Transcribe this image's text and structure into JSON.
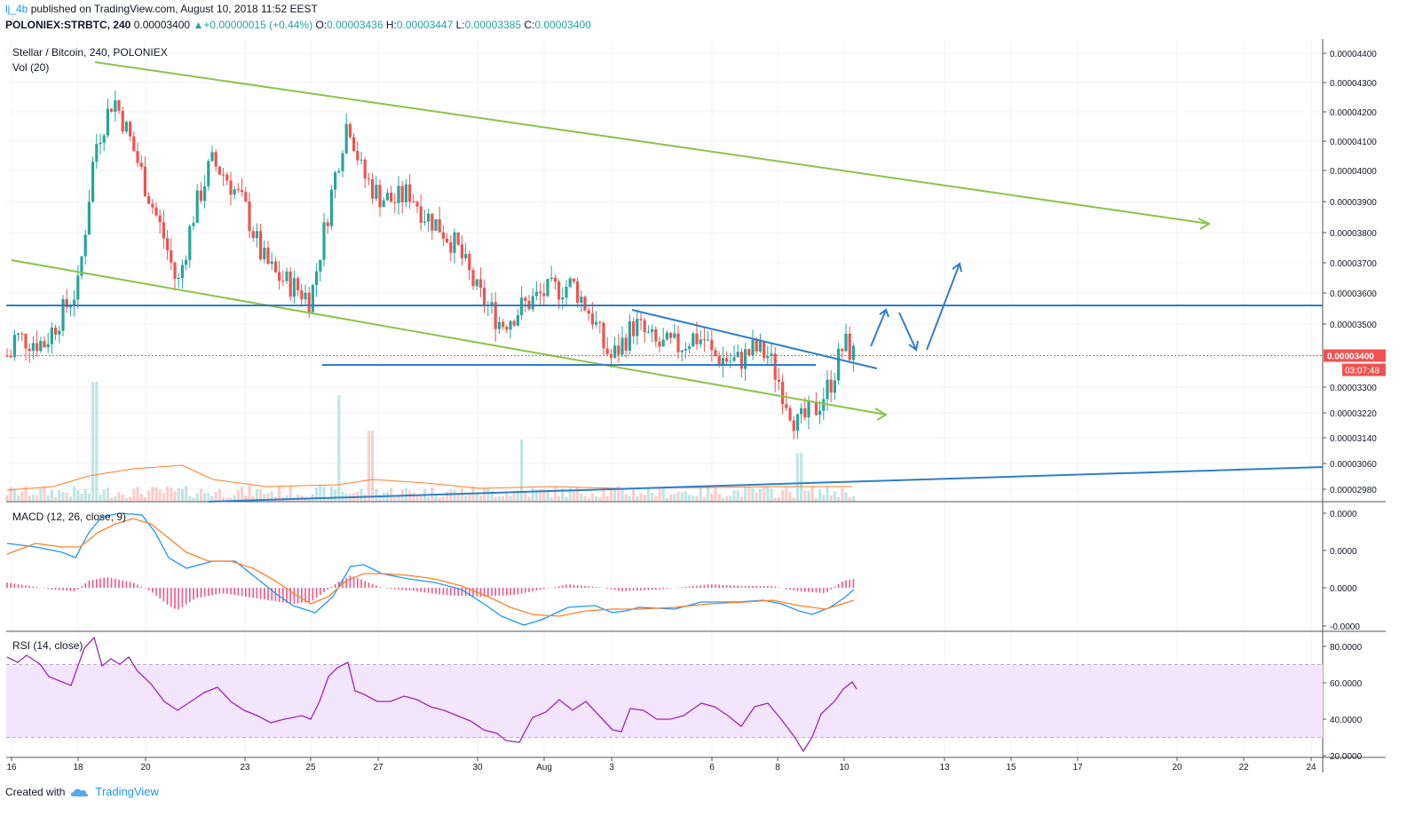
{
  "header": {
    "author": "lj_4b",
    "published_text": "published on TradingView.com, August 10, 2018 11:52 EEST",
    "symbol": "POLONIEX:STRBTC, 240",
    "last": "0.00003400",
    "change": "▲+0.00000015 (+0.44%)",
    "o_label": "O:",
    "o_value": "0.00003436",
    "h_label": "H:",
    "h_value": "0.00003447",
    "l_label": "L:",
    "l_value": "0.00003385",
    "c_label": "C:",
    "c_value": "0.00003400"
  },
  "panes": {
    "main_title": "Stellar / Bitcoin, 240, POLONIEX",
    "vol_title": "Vol (20)",
    "macd_title": "MACD (12, 26, close, 9)",
    "rsi_title": "RSI (14, close)"
  },
  "price_badge": {
    "price": "0.00003400",
    "countdown": "03:07:48"
  },
  "footer": {
    "created_with": "Created with",
    "brand": "TradingView"
  },
  "colors": {
    "up": "#26a69a",
    "down": "#ef5350",
    "channel": "#8bc34a",
    "trendline": "#2f7fc8",
    "macd": "#2196f3",
    "signal": "#ff7f27",
    "hist": "#e91e63",
    "rsi": "#9c27b0",
    "rsi_band": "#f3e5fc"
  },
  "chart_data": [
    {
      "type": "candlestick",
      "title": "Stellar / Bitcoin, 240, POLONIEX",
      "x_ticks": [
        "16",
        "18",
        "20",
        "23",
        "25",
        "27",
        "30",
        "Aug",
        "3",
        "6",
        "8",
        "10",
        "13",
        "15",
        "17",
        "20",
        "22",
        "24"
      ],
      "y_ticks": [
        "0.00004400",
        "0.00004300",
        "0.00004200",
        "0.00004100",
        "0.00004000",
        "0.00003900",
        "0.00003800",
        "0.00003700",
        "0.00003600",
        "0.00003500",
        "0.00003300",
        "0.00003220",
        "0.00003140",
        "0.00003060",
        "0.00002980"
      ],
      "last_price": "0.00003400",
      "close_path": [
        {
          "x": "16",
          "y": 3.46e-05
        },
        {
          "x": "17",
          "y": 3.44e-05
        },
        {
          "x": "18",
          "y": 3.62e-05
        },
        {
          "x": "18.5",
          "y": 4.08e-05
        },
        {
          "x": "19",
          "y": 4.25e-05
        },
        {
          "x": "19.5",
          "y": 4.12e-05
        },
        {
          "x": "20",
          "y": 3.95e-05
        },
        {
          "x": "20.5",
          "y": 3.78e-05
        },
        {
          "x": "21",
          "y": 3.62e-05
        },
        {
          "x": "21.5",
          "y": 3.85e-05
        },
        {
          "x": "22",
          "y": 4.03e-05
        },
        {
          "x": "22.5",
          "y": 3.98e-05
        },
        {
          "x": "23",
          "y": 3.88e-05
        },
        {
          "x": "23.5",
          "y": 3.72e-05
        },
        {
          "x": "24",
          "y": 3.66e-05
        },
        {
          "x": "24.5",
          "y": 3.62e-05
        },
        {
          "x": "25",
          "y": 3.58e-05
        },
        {
          "x": "25.5",
          "y": 3.95e-05
        },
        {
          "x": "26",
          "y": 4.18e-05
        },
        {
          "x": "26.5",
          "y": 3.99e-05
        },
        {
          "x": "27",
          "y": 3.92e-05
        },
        {
          "x": "27.5",
          "y": 3.9e-05
        },
        {
          "x": "28",
          "y": 3.93e-05
        },
        {
          "x": "28.5",
          "y": 3.86e-05
        },
        {
          "x": "29",
          "y": 3.82e-05
        },
        {
          "x": "29.5",
          "y": 3.75e-05
        },
        {
          "x": "30",
          "y": 3.6e-05
        },
        {
          "x": "30.5",
          "y": 3.5e-05
        },
        {
          "x": "31",
          "y": 3.56e-05
        },
        {
          "x": "Aug",
          "y": 3.6e-05
        },
        {
          "x": "Aug 1.5",
          "y": 3.63e-05
        },
        {
          "x": "2",
          "y": 3.52e-05
        },
        {
          "x": "2.5",
          "y": 3.43e-05
        },
        {
          "x": "3",
          "y": 3.39e-05
        },
        {
          "x": "3.5",
          "y": 3.5e-05
        },
        {
          "x": "4",
          "y": 3.43e-05
        },
        {
          "x": "4.5",
          "y": 3.43e-05
        },
        {
          "x": "5",
          "y": 3.46e-05
        },
        {
          "x": "5.5",
          "y": 3.45e-05
        },
        {
          "x": "6",
          "y": 3.4e-05
        },
        {
          "x": "6.5",
          "y": 3.38e-05
        },
        {
          "x": "7",
          "y": 3.42e-05
        },
        {
          "x": "7.5",
          "y": 3.4e-05
        },
        {
          "x": "8",
          "y": 3.33e-05
        },
        {
          "x": "8.2",
          "y": 3.18e-05
        },
        {
          "x": "8.5",
          "y": 3.23e-05
        },
        {
          "x": "9",
          "y": 3.31e-05
        },
        {
          "x": "9.5",
          "y": 3.39e-05
        },
        {
          "x": "10",
          "y": 3.44e-05
        },
        {
          "x": "10.2",
          "y": 3.4e-05
        }
      ]
    },
    {
      "type": "line",
      "title": "MACD (12, 26, close, 9)",
      "y_ticks": [
        "0.0000",
        "0.0000",
        "0.0000",
        "-0.0000"
      ]
    },
    {
      "type": "line",
      "title": "RSI (14, close)",
      "y_ticks": [
        "80.0000",
        "60.0000",
        "40.0000",
        "20.0000"
      ],
      "band": [
        30,
        70
      ],
      "last_value": 56
    }
  ]
}
